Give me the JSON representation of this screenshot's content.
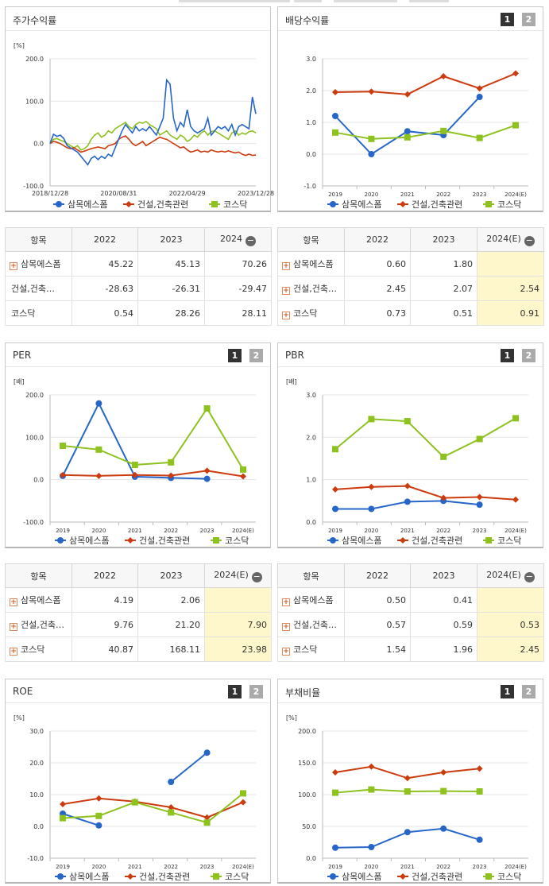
{
  "colors": {
    "company": "#2766c9",
    "sector": "#cc3b0e",
    "kosdaq": "#8dc21f"
  },
  "legend": {
    "company": "삼목에스폼",
    "sector": "건설,건축관련",
    "kosdaq": "코스닥"
  },
  "buttons": {
    "one": "1",
    "two": "2"
  },
  "panels": {
    "price": {
      "title": "주가수익률"
    },
    "dividend": {
      "title": "배당수익률"
    },
    "per": {
      "title": "PER"
    },
    "pbr": {
      "title": "PBR"
    },
    "roe": {
      "title": "ROE"
    },
    "debt": {
      "title": "부채비율"
    }
  },
  "tables": {
    "price": {
      "header": [
        "항목",
        "2022",
        "2023",
        "2024"
      ],
      "rows": [
        {
          "name": "삼목에스폼",
          "v": [
            "45.22",
            "45.13",
            "70.26"
          ]
        },
        {
          "name": "건설,건축…",
          "v": [
            "-28.63",
            "-26.31",
            "-29.47"
          ]
        },
        {
          "name": "코스닥",
          "v": [
            "0.54",
            "28.26",
            "28.11"
          ]
        }
      ]
    },
    "dividend": {
      "header": [
        "항목",
        "2022",
        "2023",
        "2024(E)"
      ],
      "rows": [
        {
          "name": "삼목에스폼",
          "v": [
            "0.60",
            "1.80",
            ""
          ]
        },
        {
          "name": "건설,건축…",
          "v": [
            "2.45",
            "2.07",
            "2.54"
          ]
        },
        {
          "name": "코스닥",
          "v": [
            "0.73",
            "0.51",
            "0.91"
          ]
        }
      ]
    },
    "per": {
      "header": [
        "항목",
        "2022",
        "2023",
        "2024(E)"
      ],
      "rows": [
        {
          "name": "삼목에스폼",
          "v": [
            "4.19",
            "2.06",
            ""
          ]
        },
        {
          "name": "건설,건축…",
          "v": [
            "9.76",
            "21.20",
            "7.90"
          ]
        },
        {
          "name": "코스닥",
          "v": [
            "40.87",
            "168.11",
            "23.98"
          ]
        }
      ]
    },
    "pbr": {
      "header": [
        "항목",
        "2022",
        "2023",
        "2024(E)"
      ],
      "rows": [
        {
          "name": "삼목에스폼",
          "v": [
            "0.50",
            "0.41",
            ""
          ]
        },
        {
          "name": "건설,건축…",
          "v": [
            "0.57",
            "0.59",
            "0.53"
          ]
        },
        {
          "name": "코스닥",
          "v": [
            "1.54",
            "1.96",
            "2.45"
          ]
        }
      ]
    }
  },
  "chart_data": [
    {
      "id": "price",
      "type": "line",
      "ylabel": "[%]",
      "ylim": [
        -100,
        200
      ],
      "yticks": [
        "200.0",
        "100.0",
        "0.0",
        "-100.0"
      ],
      "x_labels": [
        "2018/12/28",
        "2020/08/31",
        "2022/04/29",
        "2023/12/28"
      ],
      "series": [
        {
          "name": "삼목에스폼",
          "key": "company",
          "values": [
            0,
            22,
            17,
            20,
            12,
            -5,
            -10,
            -15,
            -20,
            -30,
            -40,
            -50,
            -35,
            -30,
            -38,
            -30,
            -35,
            -25,
            -30,
            -10,
            10,
            30,
            45,
            35,
            25,
            40,
            30,
            35,
            30,
            40,
            30,
            20,
            40,
            60,
            150,
            140,
            60,
            30,
            50,
            40,
            80,
            40,
            30,
            25,
            30,
            35,
            60,
            20,
            30,
            40,
            35,
            40,
            30,
            45,
            20,
            40,
            45,
            40,
            35,
            110,
            70
          ]
        },
        {
          "name": "건설,건축관련",
          "key": "sector",
          "values": [
            0,
            5,
            3,
            0,
            -5,
            -10,
            -12,
            -10,
            -15,
            -20,
            -18,
            -15,
            -12,
            -10,
            -8,
            -10,
            -12,
            -5,
            -3,
            0,
            10,
            15,
            18,
            10,
            0,
            -5,
            0,
            5,
            -5,
            0,
            5,
            10,
            15,
            12,
            10,
            5,
            0,
            -5,
            -10,
            -8,
            -15,
            -20,
            -18,
            -15,
            -20,
            -18,
            -20,
            -15,
            -18,
            -20,
            -18,
            -20,
            -17,
            -20,
            -22,
            -20,
            -25,
            -28,
            -25,
            -28,
            -27
          ]
        },
        {
          "name": "코스닥",
          "key": "kosdaq",
          "values": [
            0,
            10,
            12,
            8,
            5,
            0,
            -5,
            -10,
            -5,
            -15,
            -12,
            -5,
            10,
            20,
            25,
            15,
            20,
            30,
            25,
            35,
            40,
            45,
            50,
            40,
            35,
            45,
            50,
            48,
            52,
            45,
            40,
            35,
            20,
            25,
            30,
            20,
            15,
            10,
            20,
            15,
            5,
            10,
            20,
            15,
            25,
            30,
            20,
            28,
            30,
            25,
            20,
            15,
            10,
            25,
            30,
            20,
            25,
            22,
            28,
            30,
            25
          ]
        }
      ]
    },
    {
      "id": "dividend",
      "type": "line",
      "ylim": [
        -1.0,
        3.0
      ],
      "yticks": [
        "3.0",
        "2.0",
        "1.0",
        "0.0",
        "-1.0"
      ],
      "categories": [
        "2019",
        "2020",
        "2021",
        "2022",
        "2023",
        "2024(E)"
      ],
      "series": [
        {
          "name": "삼목에스폼",
          "key": "company",
          "values": [
            1.2,
            0.0,
            0.72,
            0.6,
            1.8,
            null
          ]
        },
        {
          "name": "건설,건축관련",
          "key": "sector",
          "values": [
            1.95,
            1.97,
            1.88,
            2.45,
            2.07,
            2.54
          ]
        },
        {
          "name": "코스닥",
          "key": "kosdaq",
          "values": [
            0.68,
            0.48,
            0.53,
            0.73,
            0.51,
            0.91
          ]
        }
      ]
    },
    {
      "id": "per",
      "type": "line",
      "ylabel": "[배]",
      "ylim": [
        -100,
        200
      ],
      "yticks": [
        "200.0",
        "100.0",
        "0.0",
        "-100.0"
      ],
      "categories": [
        "2019",
        "2020",
        "2021",
        "2022",
        "2023",
        "2024(E)"
      ],
      "series": [
        {
          "name": "삼목에스폼",
          "key": "company",
          "values": [
            9,
            180,
            7,
            4.19,
            2.06,
            null
          ]
        },
        {
          "name": "건설,건축관련",
          "key": "sector",
          "values": [
            11,
            9,
            11,
            9.76,
            21.2,
            7.9
          ]
        },
        {
          "name": "코스닥",
          "key": "kosdaq",
          "values": [
            80,
            71,
            35,
            40.87,
            168.11,
            23.98
          ]
        }
      ]
    },
    {
      "id": "pbr",
      "type": "line",
      "ylabel": "[배]",
      "ylim": [
        0.0,
        3.0
      ],
      "yticks": [
        "3.0",
        "2.0",
        "1.0",
        "0.0"
      ],
      "categories": [
        "2019",
        "2020",
        "2021",
        "2022",
        "2023",
        "2024(E)"
      ],
      "series": [
        {
          "name": "삼목에스폼",
          "key": "company",
          "values": [
            0.31,
            0.31,
            0.48,
            0.5,
            0.41,
            null
          ]
        },
        {
          "name": "건설,건축관련",
          "key": "sector",
          "values": [
            0.77,
            0.83,
            0.85,
            0.57,
            0.59,
            0.53
          ]
        },
        {
          "name": "코스닥",
          "key": "kosdaq",
          "values": [
            1.72,
            2.43,
            2.38,
            1.54,
            1.96,
            2.45
          ]
        }
      ]
    },
    {
      "id": "roe",
      "type": "line",
      "ylabel": "[%]",
      "ylim": [
        -10.0,
        30.0
      ],
      "yticks": [
        "30.0",
        "20.0",
        "10.0",
        "0.0",
        "-10.0"
      ],
      "categories": [
        "2019",
        "2020",
        "2021",
        "2022",
        "2023",
        "2024(E)"
      ],
      "series": [
        {
          "name": "삼목에스폼",
          "key": "company",
          "values": [
            4.0,
            0.3,
            null,
            14.0,
            23.2,
            null
          ]
        },
        {
          "name": "건설,건축관련",
          "key": "sector",
          "values": [
            7.0,
            8.8,
            7.8,
            6.0,
            2.8,
            7.6
          ]
        },
        {
          "name": "코스닥",
          "key": "kosdaq",
          "values": [
            2.6,
            3.3,
            7.6,
            4.4,
            1.2,
            10.4
          ]
        }
      ]
    },
    {
      "id": "debt",
      "type": "line",
      "ylabel": "[%]",
      "ylim": [
        0.0,
        200.0
      ],
      "yticks": [
        "200.0",
        "150.0",
        "100.0",
        "50.0",
        "0.0"
      ],
      "categories": [
        "2019",
        "2020",
        "2021",
        "2022",
        "2023",
        "2024(E)"
      ],
      "series": [
        {
          "name": "삼목에스폼",
          "key": "company",
          "values": [
            16.5,
            17.5,
            41.0,
            46.5,
            29.0,
            null
          ]
        },
        {
          "name": "건설,건축관련",
          "key": "sector",
          "values": [
            135,
            144,
            126,
            135,
            141,
            null
          ]
        },
        {
          "name": "코스닥",
          "key": "kosdaq",
          "values": [
            103,
            108,
            105,
            105.5,
            105,
            null
          ]
        }
      ]
    }
  ]
}
